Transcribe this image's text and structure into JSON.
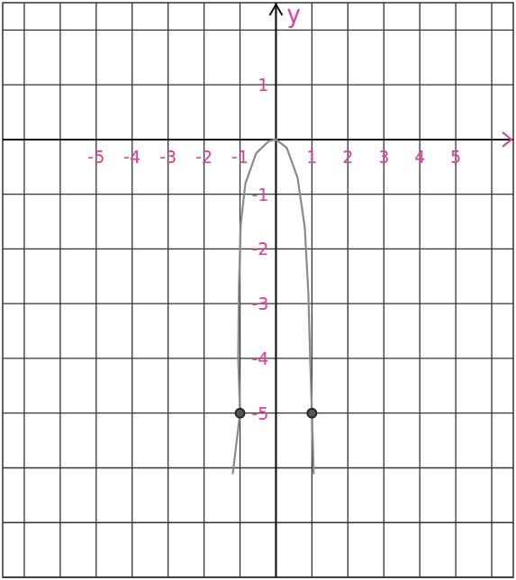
{
  "chart_data": {
    "type": "line",
    "y_label": "y",
    "xlim": [
      -7.6,
      6.6
    ],
    "ylim": [
      -8,
      2.5
    ],
    "xticks": [
      -5,
      -4,
      -3,
      -2,
      -1,
      1,
      2,
      3,
      4,
      5
    ],
    "yticks": [
      1,
      -1,
      -2,
      -3,
      -4,
      -5
    ],
    "grid": true,
    "series": [
      {
        "type": "line",
        "color": "#8a8a8a",
        "line_style": "solid",
        "x": [
          -1.2,
          -1,
          -1.05,
          -1.03,
          -0.98,
          -0.85,
          -0.55,
          -0.2,
          0,
          0.3,
          0.6,
          0.8,
          0.9,
          0.95,
          1,
          1.05
        ],
        "values": [
          -6.1,
          -5,
          -4,
          -2.7,
          -1.55,
          -0.8,
          -0.25,
          -0.03,
          0,
          -0.15,
          -0.7,
          -1.6,
          -2.8,
          -4,
          -5,
          -6.1
        ]
      },
      {
        "type": "scatter",
        "color": "#222222",
        "marker": "circle",
        "x": [
          -1,
          1
        ],
        "values": [
          -5,
          -5
        ]
      }
    ]
  }
}
